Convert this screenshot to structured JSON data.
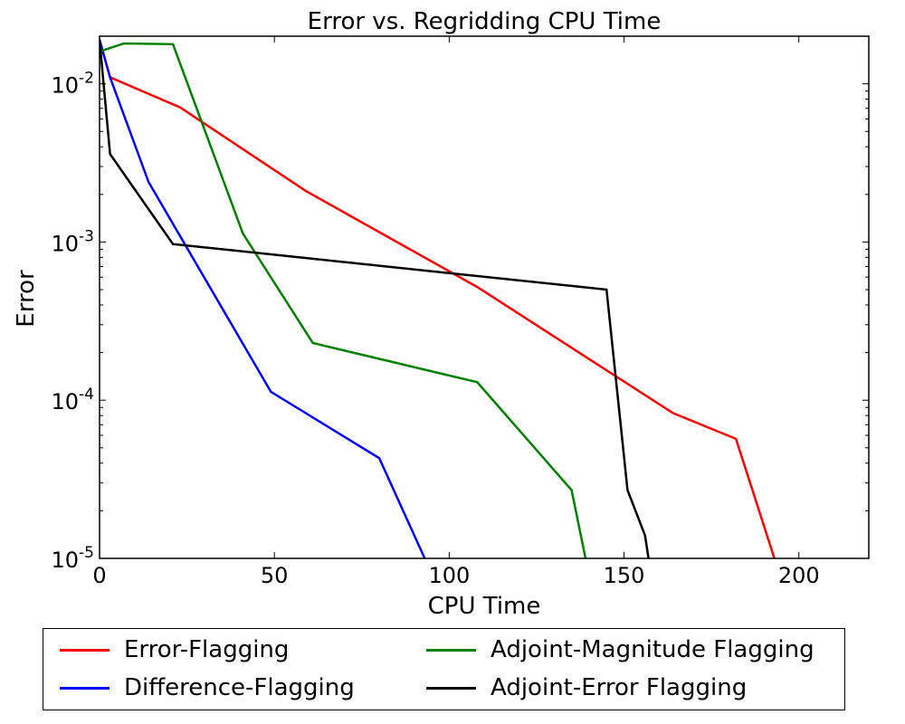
{
  "chart_data": {
    "type": "line",
    "title": "Error vs. Regridding CPU Time",
    "xlabel": "CPU Time",
    "ylabel": "Error",
    "xlim": [
      0,
      220
    ],
    "ylim": [
      1e-05,
      0.02
    ],
    "yscale": "log",
    "x_ticks": [
      0,
      50,
      100,
      150,
      200
    ],
    "y_ticks": [
      {
        "value": 1e-05,
        "base": "10",
        "exp": "-5"
      },
      {
        "value": 0.0001,
        "base": "10",
        "exp": "-4"
      },
      {
        "value": 0.001,
        "base": "10",
        "exp": "-3"
      },
      {
        "value": 0.01,
        "base": "10",
        "exp": "-2"
      }
    ],
    "grid": false,
    "legend_position": "bottom, outside plot",
    "series": [
      {
        "name": "Error-Flagging",
        "color": "#ff0000",
        "x": [
          0,
          3,
          23,
          59,
          108,
          164,
          182,
          193
        ],
        "y": [
          0.019,
          0.011,
          0.0071,
          0.0021,
          0.00052,
          8.3e-05,
          5.7e-05,
          1e-05
        ]
      },
      {
        "name": "Difference-Flagging",
        "color": "#0000ff",
        "x": [
          0,
          3,
          14,
          49,
          80,
          93
        ],
        "y": [
          0.019,
          0.011,
          0.0024,
          0.000113,
          4.3e-05,
          1e-05
        ]
      },
      {
        "name": "Adjoint-Magnitude Flagging",
        "color": "#008000",
        "x": [
          0,
          7,
          21,
          41,
          61,
          108,
          135,
          139
        ],
        "y": [
          0.016,
          0.018,
          0.0178,
          0.00113,
          0.00023,
          0.00013,
          2.7e-05,
          1e-05
        ]
      },
      {
        "name": "Adjoint-Error Flagging",
        "color": "#000000",
        "x": [
          0,
          3,
          21,
          145,
          151,
          156,
          157
        ],
        "y": [
          0.019,
          0.0036,
          0.00097,
          0.0005,
          2.7e-05,
          1.4e-05,
          1e-05
        ]
      }
    ]
  },
  "legend": {
    "items": [
      {
        "label": "Error-Flagging",
        "color": "#ff0000"
      },
      {
        "label": "Adjoint-Magnitude Flagging",
        "color": "#008000"
      },
      {
        "label": "Difference-Flagging",
        "color": "#0000ff"
      },
      {
        "label": "Adjoint-Error Flagging",
        "color": "#000000"
      }
    ]
  }
}
